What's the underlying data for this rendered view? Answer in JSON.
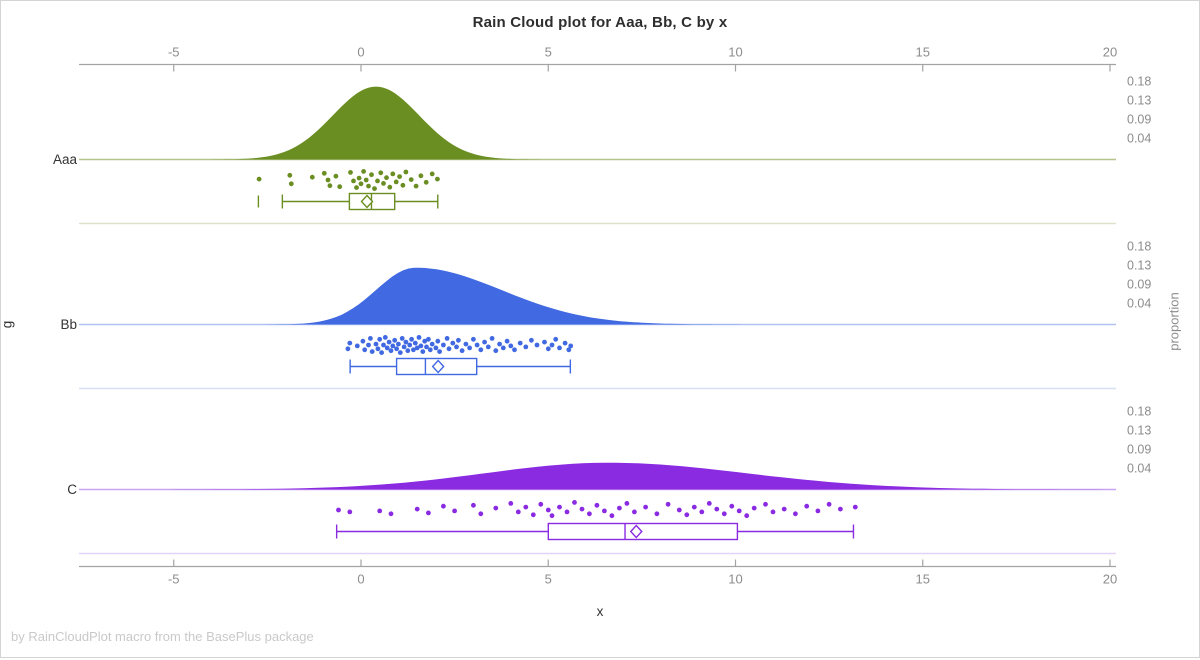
{
  "title": "Rain Cloud plot for Aaa, Bb, C by x",
  "footer": "by RainCloudPlot macro from the BasePlus package",
  "axes": {
    "x_label": "x",
    "y_label": "g",
    "right_label": "proportion",
    "x_ticks": [
      -5,
      0,
      5,
      10,
      15,
      20
    ],
    "proportion_ticks": [
      "0.18",
      "0.13",
      "0.09",
      "0.04"
    ]
  },
  "chart_data": {
    "type": "raincloud",
    "title": "Rain Cloud plot for Aaa, Bb, C by x",
    "xlabel": "x",
    "ylabel": "g",
    "right_axis_label": "proportion",
    "x_range": [
      -7.4,
      20.2
    ],
    "proportion_tick_values": [
      0.18,
      0.13,
      0.09,
      0.04
    ],
    "groups": [
      {
        "label": "Aaa",
        "color": "#6b8e23",
        "baseline_color": "#b4c48a",
        "separator_color": "#dde3cb",
        "density": {
          "mean": 0.4,
          "sigma_left": 1.15,
          "sigma_right": 1.15,
          "peak": 0.177
        },
        "box": {
          "whisker_low": -2.1,
          "q1": -0.31,
          "median": 0.28,
          "q3": 0.9,
          "whisker_high": 2.05,
          "mean": 0.16,
          "outliers": [
            -2.74
          ]
        },
        "points": [
          [
            -2.72,
            0.45
          ],
          [
            -1.9,
            0.25
          ],
          [
            -1.86,
            0.7
          ],
          [
            -1.3,
            0.35
          ],
          [
            -0.98,
            0.15
          ],
          [
            -0.88,
            0.5
          ],
          [
            -0.83,
            0.8
          ],
          [
            -0.67,
            0.3
          ],
          [
            -0.57,
            0.85
          ],
          [
            -0.28,
            0.1
          ],
          [
            -0.2,
            0.55
          ],
          [
            -0.12,
            0.9
          ],
          [
            -0.05,
            0.4
          ],
          [
            0.0,
            0.7
          ],
          [
            0.07,
            0.05
          ],
          [
            0.14,
            0.5
          ],
          [
            0.2,
            0.82
          ],
          [
            0.28,
            0.22
          ],
          [
            0.36,
            0.95
          ],
          [
            0.44,
            0.55
          ],
          [
            0.53,
            0.12
          ],
          [
            0.6,
            0.68
          ],
          [
            0.68,
            0.38
          ],
          [
            0.77,
            0.88
          ],
          [
            0.85,
            0.18
          ],
          [
            0.94,
            0.6
          ],
          [
            1.03,
            0.32
          ],
          [
            1.12,
            0.78
          ],
          [
            1.2,
            0.08
          ],
          [
            1.34,
            0.48
          ],
          [
            1.47,
            0.82
          ],
          [
            1.6,
            0.28
          ],
          [
            1.74,
            0.62
          ],
          [
            1.9,
            0.18
          ],
          [
            2.04,
            0.45
          ]
        ]
      },
      {
        "label": "Bb",
        "color": "#4169e1",
        "baseline_color": "#b0c4f2",
        "separator_color": "#d8e0f8",
        "density": {
          "mean": 1.45,
          "sigma_left": 1.05,
          "sigma_right": 2.3,
          "peak": 0.138
        },
        "box": {
          "whisker_low": -0.29,
          "q1": 0.95,
          "median": 1.72,
          "q3": 3.09,
          "whisker_high": 5.59,
          "mean": 2.06,
          "outliers": []
        },
        "points": [
          [
            -0.35,
            0.7
          ],
          [
            -0.3,
            0.4
          ],
          [
            -0.1,
            0.55
          ],
          [
            0.05,
            0.3
          ],
          [
            0.1,
            0.75
          ],
          [
            0.2,
            0.5
          ],
          [
            0.25,
            0.15
          ],
          [
            0.3,
            0.85
          ],
          [
            0.4,
            0.45
          ],
          [
            0.45,
            0.7
          ],
          [
            0.5,
            0.2
          ],
          [
            0.55,
            0.9
          ],
          [
            0.6,
            0.5
          ],
          [
            0.65,
            0.1
          ],
          [
            0.7,
            0.65
          ],
          [
            0.75,
            0.35
          ],
          [
            0.8,
            0.8
          ],
          [
            0.85,
            0.55
          ],
          [
            0.9,
            0.25
          ],
          [
            0.95,
            0.7
          ],
          [
            1.0,
            0.45
          ],
          [
            1.05,
            0.9
          ],
          [
            1.1,
            0.15
          ],
          [
            1.15,
            0.6
          ],
          [
            1.2,
            0.35
          ],
          [
            1.25,
            0.8
          ],
          [
            1.3,
            0.5
          ],
          [
            1.35,
            0.2
          ],
          [
            1.4,
            0.75
          ],
          [
            1.45,
            0.4
          ],
          [
            1.5,
            0.65
          ],
          [
            1.55,
            0.1
          ],
          [
            1.6,
            0.55
          ],
          [
            1.65,
            0.85
          ],
          [
            1.7,
            0.3
          ],
          [
            1.75,
            0.6
          ],
          [
            1.8,
            0.2
          ],
          [
            1.85,
            0.75
          ],
          [
            1.9,
            0.45
          ],
          [
            2.0,
            0.65
          ],
          [
            2.05,
            0.3
          ],
          [
            2.1,
            0.85
          ],
          [
            2.2,
            0.5
          ],
          [
            2.3,
            0.15
          ],
          [
            2.35,
            0.7
          ],
          [
            2.45,
            0.4
          ],
          [
            2.55,
            0.6
          ],
          [
            2.6,
            0.25
          ],
          [
            2.7,
            0.8
          ],
          [
            2.8,
            0.45
          ],
          [
            2.9,
            0.65
          ],
          [
            3.0,
            0.2
          ],
          [
            3.1,
            0.5
          ],
          [
            3.2,
            0.75
          ],
          [
            3.3,
            0.35
          ],
          [
            3.4,
            0.6
          ],
          [
            3.5,
            0.15
          ],
          [
            3.6,
            0.8
          ],
          [
            3.7,
            0.45
          ],
          [
            3.8,
            0.65
          ],
          [
            3.9,
            0.3
          ],
          [
            4.0,
            0.55
          ],
          [
            4.1,
            0.75
          ],
          [
            4.25,
            0.4
          ],
          [
            4.4,
            0.6
          ],
          [
            4.55,
            0.25
          ],
          [
            4.7,
            0.5
          ],
          [
            4.9,
            0.35
          ],
          [
            5.0,
            0.7
          ],
          [
            5.1,
            0.5
          ],
          [
            5.2,
            0.2
          ],
          [
            5.3,
            0.65
          ],
          [
            5.45,
            0.4
          ],
          [
            5.55,
            0.75
          ],
          [
            5.6,
            0.55
          ]
        ]
      },
      {
        "label": "C",
        "color": "#8a2be2",
        "baseline_color": "#c9a3f0",
        "separator_color": "#e4d4fa",
        "density": {
          "mean": 6.6,
          "sigma_left": 3.3,
          "sigma_right": 3.7,
          "peak": 0.065
        },
        "box": {
          "whisker_low": -0.65,
          "q1": 5.0,
          "median": 7.05,
          "q3": 10.05,
          "whisker_high": 13.15,
          "mean": 7.35,
          "outliers": []
        },
        "points": [
          [
            -0.6,
            0.5
          ],
          [
            -0.3,
            0.6
          ],
          [
            0.5,
            0.55
          ],
          [
            0.8,
            0.7
          ],
          [
            1.5,
            0.45
          ],
          [
            1.8,
            0.65
          ],
          [
            2.2,
            0.3
          ],
          [
            2.5,
            0.55
          ],
          [
            3.0,
            0.25
          ],
          [
            3.2,
            0.7
          ],
          [
            3.6,
            0.4
          ],
          [
            4.0,
            0.15
          ],
          [
            4.2,
            0.6
          ],
          [
            4.4,
            0.35
          ],
          [
            4.6,
            0.75
          ],
          [
            4.8,
            0.2
          ],
          [
            5.0,
            0.5
          ],
          [
            5.1,
            0.8
          ],
          [
            5.3,
            0.35
          ],
          [
            5.5,
            0.6
          ],
          [
            5.7,
            0.1
          ],
          [
            5.9,
            0.45
          ],
          [
            6.1,
            0.7
          ],
          [
            6.3,
            0.25
          ],
          [
            6.5,
            0.55
          ],
          [
            6.7,
            0.8
          ],
          [
            6.9,
            0.4
          ],
          [
            7.1,
            0.15
          ],
          [
            7.3,
            0.6
          ],
          [
            7.6,
            0.35
          ],
          [
            7.9,
            0.7
          ],
          [
            8.2,
            0.2
          ],
          [
            8.5,
            0.5
          ],
          [
            8.7,
            0.75
          ],
          [
            8.9,
            0.35
          ],
          [
            9.1,
            0.6
          ],
          [
            9.3,
            0.15
          ],
          [
            9.5,
            0.45
          ],
          [
            9.7,
            0.7
          ],
          [
            9.9,
            0.3
          ],
          [
            10.1,
            0.55
          ],
          [
            10.3,
            0.8
          ],
          [
            10.5,
            0.4
          ],
          [
            10.8,
            0.2
          ],
          [
            11.0,
            0.6
          ],
          [
            11.3,
            0.45
          ],
          [
            11.6,
            0.7
          ],
          [
            11.9,
            0.3
          ],
          [
            12.2,
            0.55
          ],
          [
            12.5,
            0.2
          ],
          [
            12.8,
            0.45
          ],
          [
            13.2,
            0.35
          ]
        ]
      }
    ]
  },
  "style": {
    "axis_line_color": "#a3a3a3",
    "tick_label_color": "#8c8c8c",
    "group_label_color": "#333333"
  }
}
